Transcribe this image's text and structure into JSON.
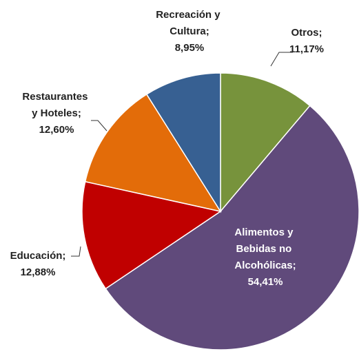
{
  "chart_data": {
    "type": "pie",
    "categories": [
      "Otros;",
      "Alimentos y Bebidas no Alcohólicas;",
      "Educación;",
      "Restaurantes y Hoteles;",
      "Recreación y Cultura;"
    ],
    "values": [
      11.17,
      54.41,
      12.88,
      12.6,
      8.95
    ],
    "value_labels": [
      "11,17%",
      "54,41%",
      "12,88%",
      "12,60%",
      "8,95%"
    ],
    "colors": [
      "#77933c",
      "#604a7b",
      "#c00000",
      "#e36c09",
      "#376092"
    ]
  }
}
